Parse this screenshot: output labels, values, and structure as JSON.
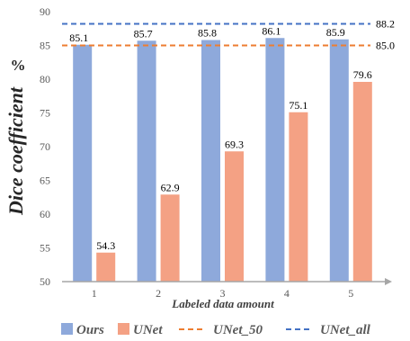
{
  "chart_data": {
    "type": "bar",
    "categories": [
      "1",
      "2",
      "3",
      "4",
      "5"
    ],
    "series": [
      {
        "name": "Ours",
        "values": [
          85.1,
          85.7,
          85.8,
          86.1,
          85.9
        ],
        "color": "#8EA9DB"
      },
      {
        "name": "UNet",
        "values": [
          54.3,
          62.9,
          69.3,
          75.1,
          79.6
        ],
        "color": "#F4A184"
      }
    ],
    "reference_lines": [
      {
        "name": "UNet_50",
        "value": 85.0,
        "label": "85.0",
        "color": "#ED7D31",
        "style": "dashed"
      },
      {
        "name": "UNet_all",
        "value": 88.2,
        "label": "88.2",
        "color": "#4472C4",
        "style": "dashed"
      }
    ],
    "xlabel": "Labeled data amount",
    "ylabel": "Dice coefficient",
    "unit": "%",
    "ylim": [
      50,
      90
    ],
    "yticks": [
      "50",
      "55",
      "60",
      "65",
      "70",
      "75",
      "80",
      "85",
      "90"
    ],
    "grid": false,
    "legend": "bottom"
  }
}
